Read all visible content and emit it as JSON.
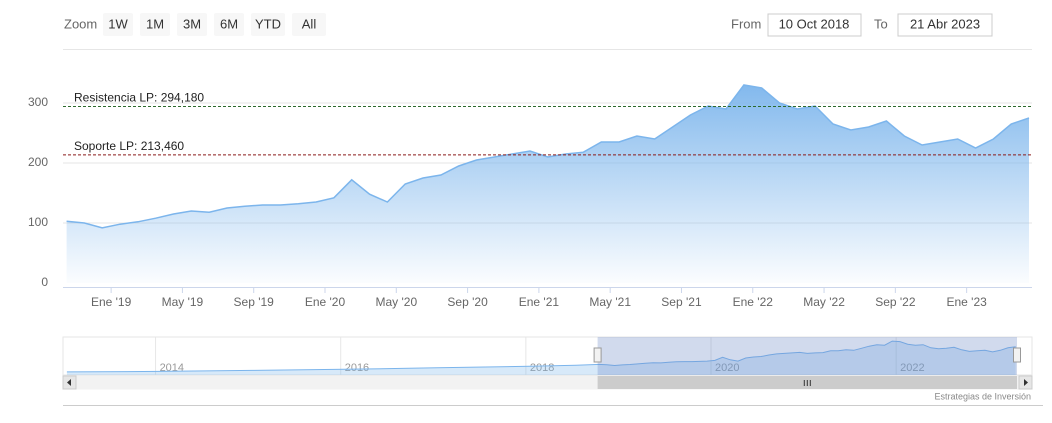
{
  "toolbar": {
    "zoom_label": "Zoom",
    "buttons": [
      "1W",
      "1M",
      "3M",
      "6M",
      "YTD",
      "All"
    ],
    "from_label": "From",
    "from": "10 Oct 2018",
    "to_label": "To",
    "to": "21 Abr 2023"
  },
  "chart_data": {
    "type": "area",
    "x": [
      "2018-10",
      "2018-11",
      "2018-12",
      "2019-01",
      "2019-02",
      "2019-03",
      "2019-04",
      "2019-05",
      "2019-06",
      "2019-07",
      "2019-08",
      "2019-09",
      "2019-10",
      "2019-11",
      "2019-12",
      "2020-01",
      "2020-02",
      "2020-03",
      "2020-04",
      "2020-05",
      "2020-06",
      "2020-07",
      "2020-08",
      "2020-09",
      "2020-10",
      "2020-11",
      "2020-12",
      "2021-01",
      "2021-02",
      "2021-03",
      "2021-04",
      "2021-05",
      "2021-06",
      "2021-07",
      "2021-08",
      "2021-09",
      "2021-10",
      "2021-11",
      "2021-12",
      "2022-01",
      "2022-02",
      "2022-03",
      "2022-04",
      "2022-05",
      "2022-06",
      "2022-07",
      "2022-08",
      "2022-09",
      "2022-10",
      "2022-11",
      "2022-12",
      "2023-01",
      "2023-02",
      "2023-03",
      "2023-04"
    ],
    "series": [
      {
        "color": "#7cb5ec",
        "values": [
          103,
          100,
          92,
          98,
          102,
          108,
          115,
          120,
          118,
          125,
          128,
          130,
          130,
          132,
          135,
          142,
          172,
          148,
          135,
          165,
          175,
          180,
          195,
          205,
          210,
          215,
          220,
          210,
          215,
          218,
          235,
          235,
          245,
          240,
          260,
          280,
          295,
          290,
          330,
          325,
          300,
          290,
          295,
          265,
          255,
          260,
          270,
          245,
          230,
          235,
          240,
          225,
          240,
          265,
          275
        ]
      }
    ],
    "xlim": [
      "2018-10-10",
      "2023-04-21"
    ],
    "xticks": [
      {
        "value": "2019-01",
        "label": "Ene '19"
      },
      {
        "value": "2019-05",
        "label": "May '19"
      },
      {
        "value": "2019-09",
        "label": "Sep '19"
      },
      {
        "value": "2020-01",
        "label": "Ene '20"
      },
      {
        "value": "2020-05",
        "label": "May '20"
      },
      {
        "value": "2020-09",
        "label": "Sep '20"
      },
      {
        "value": "2021-01",
        "label": "Ene '21"
      },
      {
        "value": "2021-05",
        "label": "May '21"
      },
      {
        "value": "2021-09",
        "label": "Sep '21"
      },
      {
        "value": "2022-01",
        "label": "Ene '22"
      },
      {
        "value": "2022-05",
        "label": "May '22"
      },
      {
        "value": "2022-09",
        "label": "Sep '22"
      },
      {
        "value": "2023-01",
        "label": "Ene '23"
      }
    ],
    "ylim": [
      0,
      400
    ],
    "yticks": [
      0,
      100,
      200,
      300
    ],
    "grid": true,
    "plot_lines": [
      {
        "value": 294.18,
        "label": "Resistencia LP: 294,180",
        "color": "#2e6b2e"
      },
      {
        "value": 213.46,
        "label": "Soporte LP: 213,460",
        "color": "#8b1a1a"
      }
    ],
    "navigator": {
      "x": [
        "2013-01",
        "2014-01",
        "2015-01",
        "2016-01",
        "2017-01",
        "2018-01",
        "2018-07"
      ],
      "values": [
        30,
        35,
        45,
        55,
        70,
        85,
        95
      ],
      "xlim": [
        "2013-01-01",
        "2023-04-21"
      ],
      "ylim": [
        0,
        360
      ],
      "xticks": [
        {
          "value": "2014-01",
          "label": "2014"
        },
        {
          "value": "2016-01",
          "label": "2016"
        },
        {
          "value": "2018-01",
          "label": "2018"
        },
        {
          "value": "2020-01",
          "label": "2020"
        },
        {
          "value": "2022-01",
          "label": "2022"
        }
      ]
    }
  },
  "credits": "Estrategias de Inversión"
}
